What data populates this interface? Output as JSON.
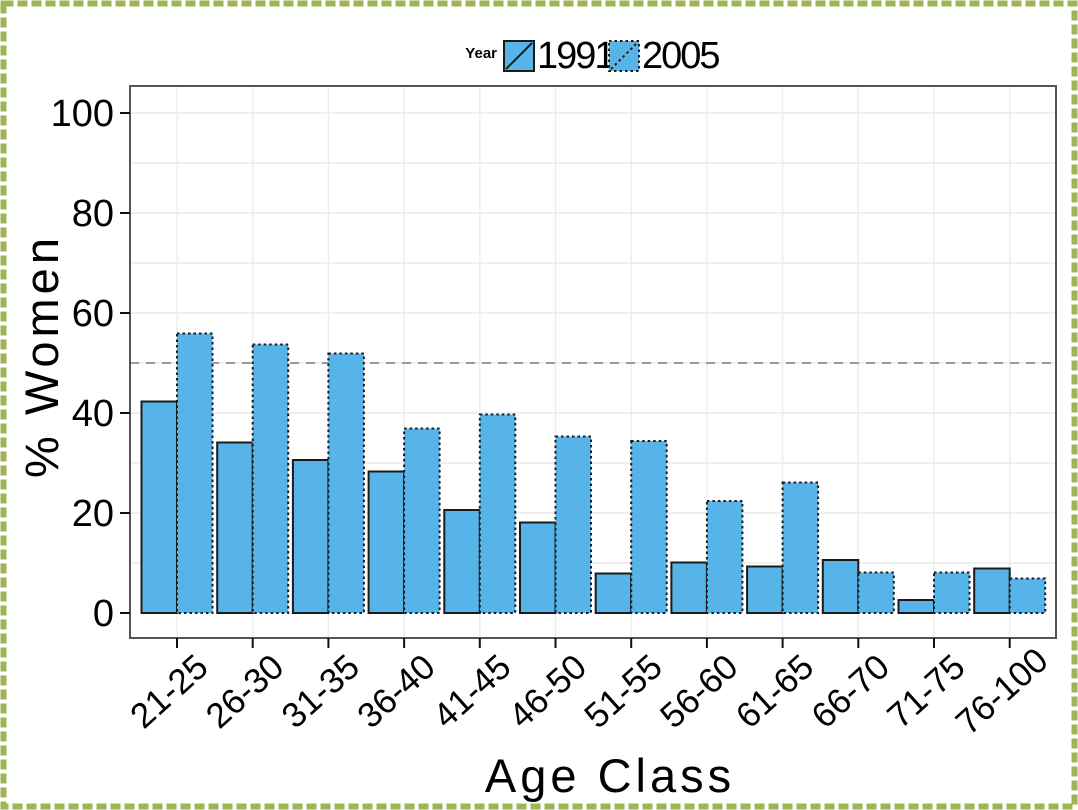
{
  "page": {
    "background": "#ffffff",
    "outer_border_color": "#9CB557"
  },
  "chart_data": {
    "type": "bar",
    "title": "",
    "xlabel": "Age Class",
    "ylabel": "% Women",
    "legend_title": "Year",
    "legend_position": "top-center",
    "categories": [
      "21-25",
      "26-30",
      "31-35",
      "36-40",
      "41-45",
      "46-50",
      "51-55",
      "56-60",
      "61-65",
      "66-70",
      "71-75",
      "76-100"
    ],
    "series": [
      {
        "name": "1991",
        "outline": "solid",
        "values": [
          42.3,
          34.1,
          30.6,
          28.3,
          20.6,
          18.1,
          7.9,
          10.1,
          9.3,
          10.6,
          2.6,
          8.9
        ]
      },
      {
        "name": "2005",
        "outline": "dotted",
        "values": [
          55.9,
          53.7,
          51.9,
          36.9,
          39.7,
          35.3,
          34.4,
          22.4,
          26.1,
          8.1,
          8.1,
          6.9
        ]
      }
    ],
    "ylim": [
      0,
      100
    ],
    "yticks": [
      0,
      20,
      40,
      60,
      80,
      100
    ],
    "grid": {
      "horizontal_step": 10,
      "vertical": "category-centers",
      "color": "#ececec"
    },
    "reference_line_y": 50,
    "colors": {
      "bar_fill": "#56B4E9",
      "bar_outline": "#1b1b1b",
      "reference_line": "#9a9a9a",
      "panel_border": "#555555",
      "tick": "#111111"
    }
  }
}
